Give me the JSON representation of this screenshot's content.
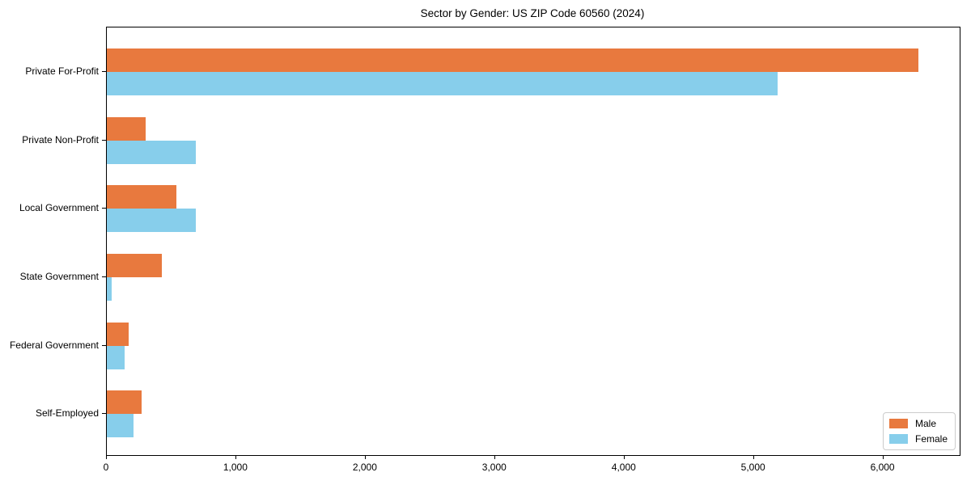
{
  "chart_data": {
    "type": "bar",
    "orientation": "horizontal",
    "title": "Sector by Gender: US ZIP Code 60560 (2024)",
    "categories": [
      "Private For-Profit",
      "Private Non-Profit",
      "Local Government",
      "State Government",
      "Federal Government",
      "Self-Employed"
    ],
    "series": [
      {
        "name": "Male",
        "color": "#e8793e",
        "values": [
          6270,
          300,
          540,
          425,
          170,
          270
        ]
      },
      {
        "name": "Female",
        "color": "#87ceeb",
        "values": [
          5180,
          690,
          690,
          35,
          140,
          205
        ]
      }
    ],
    "xlabel": "",
    "ylabel": "",
    "xlim": [
      0,
      6590
    ],
    "x_ticks": [
      0,
      1000,
      2000,
      3000,
      4000,
      5000,
      6000
    ],
    "x_tick_labels": [
      "0",
      "1,000",
      "2,000",
      "3,000",
      "4,000",
      "5,000",
      "6,000"
    ],
    "grid": false,
    "legend_position": "lower right",
    "axis_color": "#000000",
    "background_color": "#ffffff"
  }
}
